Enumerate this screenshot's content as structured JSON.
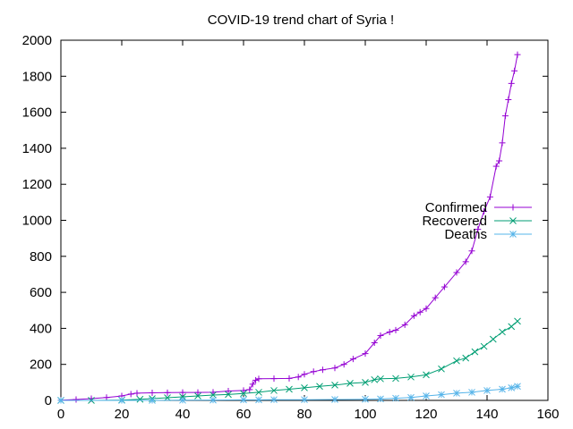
{
  "chart_data": {
    "type": "line",
    "title": "COVID-19 trend chart of Syria !",
    "xlabel": "",
    "ylabel": "",
    "xlim": [
      0,
      160
    ],
    "ylim": [
      0,
      2000
    ],
    "x_ticks": [
      0,
      20,
      40,
      60,
      80,
      100,
      120,
      140,
      160
    ],
    "y_ticks": [
      0,
      200,
      400,
      600,
      800,
      1000,
      1200,
      1400,
      1600,
      1800,
      2000
    ],
    "grid": false,
    "legend_position": "right",
    "series": [
      {
        "name": "Confirmed",
        "color": "#9400d3",
        "marker": "plus",
        "points": [
          [
            0,
            1
          ],
          [
            5,
            5
          ],
          [
            10,
            10
          ],
          [
            15,
            16
          ],
          [
            20,
            25
          ],
          [
            23,
            35
          ],
          [
            25,
            40
          ],
          [
            30,
            42
          ],
          [
            35,
            43
          ],
          [
            40,
            44
          ],
          [
            45,
            44
          ],
          [
            50,
            45
          ],
          [
            55,
            52
          ],
          [
            60,
            55
          ],
          [
            62,
            60
          ],
          [
            63,
            90
          ],
          [
            64,
            112
          ],
          [
            65,
            120
          ],
          [
            70,
            121
          ],
          [
            75,
            122
          ],
          [
            78,
            130
          ],
          [
            80,
            145
          ],
          [
            83,
            160
          ],
          [
            86,
            170
          ],
          [
            90,
            180
          ],
          [
            93,
            200
          ],
          [
            96,
            230
          ],
          [
            100,
            260
          ],
          [
            103,
            320
          ],
          [
            105,
            360
          ],
          [
            108,
            380
          ],
          [
            110,
            390
          ],
          [
            113,
            420
          ],
          [
            116,
            470
          ],
          [
            118,
            490
          ],
          [
            120,
            510
          ],
          [
            123,
            570
          ],
          [
            126,
            630
          ],
          [
            130,
            710
          ],
          [
            133,
            770
          ],
          [
            135,
            830
          ],
          [
            137,
            950
          ],
          [
            139,
            1050
          ],
          [
            141,
            1130
          ],
          [
            143,
            1300
          ],
          [
            144,
            1330
          ],
          [
            145,
            1430
          ],
          [
            146,
            1580
          ],
          [
            147,
            1670
          ],
          [
            148,
            1760
          ],
          [
            149,
            1830
          ],
          [
            150,
            1920
          ]
        ]
      },
      {
        "name": "Recovered",
        "color": "#009e73",
        "marker": "cross",
        "points": [
          [
            0,
            0
          ],
          [
            10,
            0
          ],
          [
            20,
            2
          ],
          [
            26,
            6
          ],
          [
            30,
            10
          ],
          [
            35,
            15
          ],
          [
            40,
            20
          ],
          [
            45,
            25
          ],
          [
            50,
            30
          ],
          [
            55,
            33
          ],
          [
            60,
            38
          ],
          [
            65,
            45
          ],
          [
            70,
            55
          ],
          [
            75,
            62
          ],
          [
            80,
            70
          ],
          [
            85,
            78
          ],
          [
            90,
            85
          ],
          [
            95,
            95
          ],
          [
            100,
            100
          ],
          [
            103,
            115
          ],
          [
            105,
            120
          ],
          [
            110,
            122
          ],
          [
            115,
            130
          ],
          [
            120,
            142
          ],
          [
            125,
            175
          ],
          [
            130,
            220
          ],
          [
            133,
            235
          ],
          [
            136,
            270
          ],
          [
            139,
            300
          ],
          [
            142,
            340
          ],
          [
            145,
            380
          ],
          [
            148,
            410
          ],
          [
            150,
            440
          ]
        ]
      },
      {
        "name": "Deaths",
        "color": "#56b4e9",
        "marker": "star",
        "points": [
          [
            0,
            0
          ],
          [
            20,
            0
          ],
          [
            30,
            0
          ],
          [
            40,
            1
          ],
          [
            50,
            2
          ],
          [
            60,
            3
          ],
          [
            65,
            3
          ],
          [
            70,
            4
          ],
          [
            80,
            4
          ],
          [
            90,
            5
          ],
          [
            100,
            6
          ],
          [
            105,
            8
          ],
          [
            110,
            12
          ],
          [
            115,
            16
          ],
          [
            120,
            25
          ],
          [
            125,
            32
          ],
          [
            130,
            40
          ],
          [
            135,
            45
          ],
          [
            140,
            55
          ],
          [
            145,
            62
          ],
          [
            148,
            70
          ],
          [
            150,
            78
          ]
        ]
      }
    ]
  }
}
